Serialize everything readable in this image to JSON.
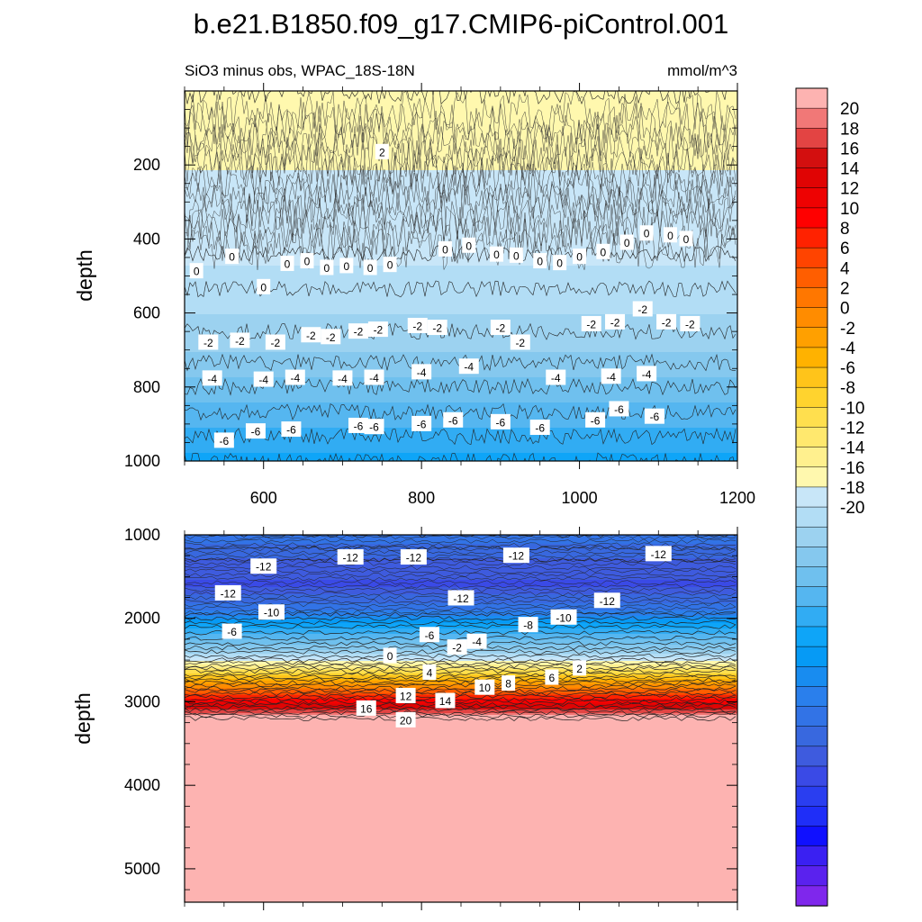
{
  "figure": {
    "title": "b.e21.B1850.f09_g17.CMIP6-piControl.001",
    "subtitle_left": "SiO3 minus obs, WPAC_18S-18N",
    "subtitle_right": "mmol/m^3"
  },
  "chart_data": [
    {
      "type": "heatmap",
      "panel": "upper",
      "ylabel": "depth",
      "x_range": [
        500,
        1200
      ],
      "y_range": [
        0,
        1000
      ],
      "y_inverted": true,
      "x_ticks": [
        600,
        800,
        1000,
        1200
      ],
      "y_ticks": [
        200,
        400,
        600,
        800,
        1000
      ],
      "levels": [
        {
          "depth": 0,
          "value": 1
        },
        {
          "depth": 440,
          "value": 0
        },
        {
          "depth": 470,
          "value": -0.5
        },
        {
          "depth": 600,
          "value": -1.5
        },
        {
          "depth": 700,
          "value": -2.5
        },
        {
          "depth": 800,
          "value": -4
        },
        {
          "depth": 900,
          "value": -5.5
        },
        {
          "depth": 1000,
          "value": -7
        }
      ],
      "contour_labels": [
        {
          "x": 750,
          "y": 165,
          "text": "2"
        },
        {
          "x": 515,
          "y": 487,
          "text": "0"
        },
        {
          "x": 560,
          "y": 448,
          "text": "0"
        },
        {
          "x": 600,
          "y": 530,
          "text": "0"
        },
        {
          "x": 630,
          "y": 467,
          "text": "0"
        },
        {
          "x": 655,
          "y": 460,
          "text": "0"
        },
        {
          "x": 680,
          "y": 478,
          "text": "0"
        },
        {
          "x": 705,
          "y": 473,
          "text": "0"
        },
        {
          "x": 735,
          "y": 478,
          "text": "0"
        },
        {
          "x": 760,
          "y": 470,
          "text": "0"
        },
        {
          "x": 830,
          "y": 428,
          "text": "0"
        },
        {
          "x": 860,
          "y": 418,
          "text": "0"
        },
        {
          "x": 895,
          "y": 442,
          "text": "0"
        },
        {
          "x": 920,
          "y": 445,
          "text": "0"
        },
        {
          "x": 950,
          "y": 460,
          "text": "0"
        },
        {
          "x": 975,
          "y": 465,
          "text": "0"
        },
        {
          "x": 1000,
          "y": 448,
          "text": "0"
        },
        {
          "x": 1030,
          "y": 435,
          "text": "0"
        },
        {
          "x": 1060,
          "y": 410,
          "text": "0"
        },
        {
          "x": 1085,
          "y": 385,
          "text": "0"
        },
        {
          "x": 1115,
          "y": 390,
          "text": "0"
        },
        {
          "x": 1135,
          "y": 400,
          "text": "0"
        },
        {
          "x": 530,
          "y": 680,
          "text": "-2"
        },
        {
          "x": 570,
          "y": 675,
          "text": "-2"
        },
        {
          "x": 615,
          "y": 680,
          "text": "-2"
        },
        {
          "x": 660,
          "y": 660,
          "text": "-2"
        },
        {
          "x": 685,
          "y": 665,
          "text": "-2"
        },
        {
          "x": 720,
          "y": 650,
          "text": "-2"
        },
        {
          "x": 745,
          "y": 645,
          "text": "-2"
        },
        {
          "x": 795,
          "y": 635,
          "text": "-2"
        },
        {
          "x": 820,
          "y": 640,
          "text": "-2"
        },
        {
          "x": 900,
          "y": 640,
          "text": "-2"
        },
        {
          "x": 925,
          "y": 680,
          "text": "-2"
        },
        {
          "x": 1015,
          "y": 630,
          "text": "-2"
        },
        {
          "x": 1045,
          "y": 625,
          "text": "-2"
        },
        {
          "x": 1080,
          "y": 590,
          "text": "-2"
        },
        {
          "x": 1110,
          "y": 625,
          "text": "-2"
        },
        {
          "x": 1140,
          "y": 630,
          "text": "-2"
        },
        {
          "x": 535,
          "y": 777,
          "text": "-4"
        },
        {
          "x": 600,
          "y": 780,
          "text": "-4"
        },
        {
          "x": 640,
          "y": 775,
          "text": "-4"
        },
        {
          "x": 700,
          "y": 777,
          "text": "-4"
        },
        {
          "x": 740,
          "y": 775,
          "text": "-4"
        },
        {
          "x": 800,
          "y": 760,
          "text": "-4"
        },
        {
          "x": 860,
          "y": 745,
          "text": "-4"
        },
        {
          "x": 970,
          "y": 775,
          "text": "-4"
        },
        {
          "x": 1040,
          "y": 772,
          "text": "-4"
        },
        {
          "x": 1085,
          "y": 765,
          "text": "-4"
        },
        {
          "x": 550,
          "y": 945,
          "text": "-6"
        },
        {
          "x": 590,
          "y": 920,
          "text": "-6"
        },
        {
          "x": 635,
          "y": 915,
          "text": "-6"
        },
        {
          "x": 720,
          "y": 905,
          "text": "-6"
        },
        {
          "x": 740,
          "y": 908,
          "text": "-6"
        },
        {
          "x": 800,
          "y": 900,
          "text": "-6"
        },
        {
          "x": 840,
          "y": 890,
          "text": "-6"
        },
        {
          "x": 900,
          "y": 895,
          "text": "-6"
        },
        {
          "x": 950,
          "y": 910,
          "text": "-6"
        },
        {
          "x": 1020,
          "y": 890,
          "text": "-6"
        },
        {
          "x": 1050,
          "y": 860,
          "text": "-6"
        },
        {
          "x": 1095,
          "y": 880,
          "text": "-6"
        }
      ]
    },
    {
      "type": "heatmap",
      "panel": "lower",
      "ylabel": "depth",
      "x_range": [
        500,
        1200
      ],
      "y_range": [
        1000,
        5400
      ],
      "y_inverted": true,
      "y_ticks": [
        1000,
        2000,
        3000,
        4000,
        5000
      ],
      "levels": [
        {
          "depth": 1000,
          "value": -11
        },
        {
          "depth": 1300,
          "value": -13
        },
        {
          "depth": 1600,
          "value": -14
        },
        {
          "depth": 1900,
          "value": -11
        },
        {
          "depth": 2100,
          "value": -7
        },
        {
          "depth": 2300,
          "value": -4
        },
        {
          "depth": 2500,
          "value": 0
        },
        {
          "depth": 2700,
          "value": 6
        },
        {
          "depth": 2900,
          "value": 12
        },
        {
          "depth": 3100,
          "value": 18
        },
        {
          "depth": 3200,
          "value": 21
        },
        {
          "depth": 5400,
          "value": 21
        }
      ],
      "contour_labels": [
        {
          "x": 600,
          "y": 1380,
          "text": "-12"
        },
        {
          "x": 710,
          "y": 1270,
          "text": "-12"
        },
        {
          "x": 790,
          "y": 1270,
          "text": "-12"
        },
        {
          "x": 920,
          "y": 1250,
          "text": "-12"
        },
        {
          "x": 1100,
          "y": 1230,
          "text": "-12"
        },
        {
          "x": 555,
          "y": 1700,
          "text": "-12"
        },
        {
          "x": 850,
          "y": 1760,
          "text": "-12"
        },
        {
          "x": 1035,
          "y": 1790,
          "text": "-12"
        },
        {
          "x": 610,
          "y": 1930,
          "text": "-10"
        },
        {
          "x": 980,
          "y": 1990,
          "text": "-10"
        },
        {
          "x": 935,
          "y": 2080,
          "text": "-8"
        },
        {
          "x": 560,
          "y": 2160,
          "text": "-6"
        },
        {
          "x": 810,
          "y": 2200,
          "text": "-6"
        },
        {
          "x": 870,
          "y": 2280,
          "text": "-4"
        },
        {
          "x": 845,
          "y": 2350,
          "text": "-2"
        },
        {
          "x": 760,
          "y": 2450,
          "text": "0"
        },
        {
          "x": 1000,
          "y": 2600,
          "text": "2"
        },
        {
          "x": 810,
          "y": 2650,
          "text": "4"
        },
        {
          "x": 965,
          "y": 2710,
          "text": "6"
        },
        {
          "x": 910,
          "y": 2780,
          "text": "8"
        },
        {
          "x": 880,
          "y": 2830,
          "text": "10"
        },
        {
          "x": 780,
          "y": 2930,
          "text": "12"
        },
        {
          "x": 830,
          "y": 2990,
          "text": "14"
        },
        {
          "x": 730,
          "y": 3080,
          "text": "16"
        },
        {
          "x": 780,
          "y": 3220,
          "text": "20"
        }
      ]
    }
  ],
  "colorbar": {
    "tick_labels": [
      "20",
      "18",
      "16",
      "14",
      "12",
      "10",
      "8",
      "6",
      "4",
      "2",
      "0",
      "-2",
      "-4",
      "-6",
      "-8",
      "-10",
      "-12",
      "-14",
      "-16",
      "-18",
      "-20"
    ],
    "colors": [
      "#FDB3B1",
      "#F17877",
      "#E34443",
      "#D30F0F",
      "#E00404",
      "#EE0202",
      "#FF0000",
      "#FF2200",
      "#FF4400",
      "#FF5E00",
      "#FF7700",
      "#FF8C00",
      "#FFA000",
      "#FFB200",
      "#FFC41A",
      "#FFD32E",
      "#FFDF4E",
      "#FFE86E",
      "#FFF08E",
      "#FFF8AE",
      "#C8E6F8",
      "#B2DDF5",
      "#9CD2F0",
      "#85C8EE",
      "#6FC0EE",
      "#55B6F0",
      "#31ACF3",
      "#0EA5F8",
      "#069AF5",
      "#188CF0",
      "#2A7FEC",
      "#3273E6",
      "#3868DF",
      "#3E5BDE",
      "#3A4AE6",
      "#2A3EF0",
      "#1F2EF8",
      "#1010FF",
      "#3A20F2",
      "#5A22EE",
      "#7F27EC"
    ]
  }
}
